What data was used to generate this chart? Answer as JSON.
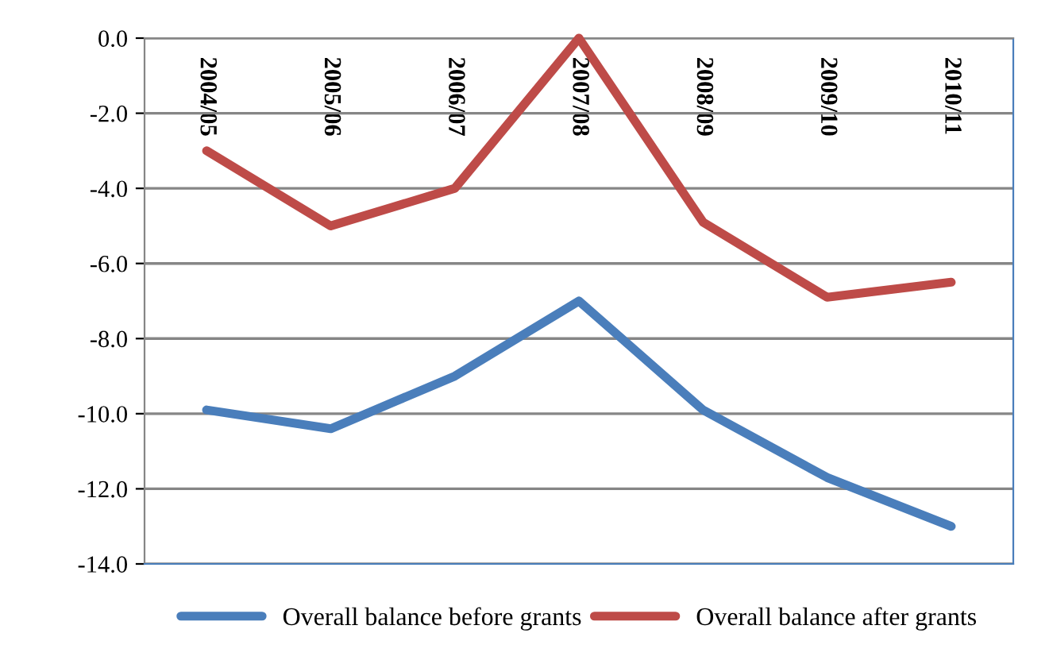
{
  "chart_data": {
    "type": "line",
    "categories": [
      "2004/05",
      "2005/06",
      "2006/07",
      "2007/08",
      "2008/09",
      "2009/10",
      "2010/11"
    ],
    "series": [
      {
        "name": "Overall balance before grants",
        "color": "#4a7ebb",
        "values": [
          -9.9,
          -10.4,
          -9.0,
          -7.0,
          -9.9,
          -11.7,
          -13.0
        ]
      },
      {
        "name": "Overall balance after grants",
        "color": "#be4b48",
        "values": [
          -3.0,
          -5.0,
          -4.0,
          0.0,
          -4.9,
          -6.9,
          -6.5
        ]
      }
    ],
    "ylim": [
      -14,
      0
    ],
    "yticks": [
      {
        "value": -14,
        "label": "-14.0"
      },
      {
        "value": -12,
        "label": "-12.0"
      },
      {
        "value": -10,
        "label": "-10.0"
      },
      {
        "value": -8,
        "label": "-8.0"
      },
      {
        "value": -6,
        "label": "-6.0"
      },
      {
        "value": -4,
        "label": "-4.0"
      },
      {
        "value": -2,
        "label": "-2.0"
      },
      {
        "value": 0,
        "label": "0.0"
      }
    ],
    "grid": "y",
    "legend": "bottom",
    "marker": "none",
    "line_style": "solid"
  }
}
